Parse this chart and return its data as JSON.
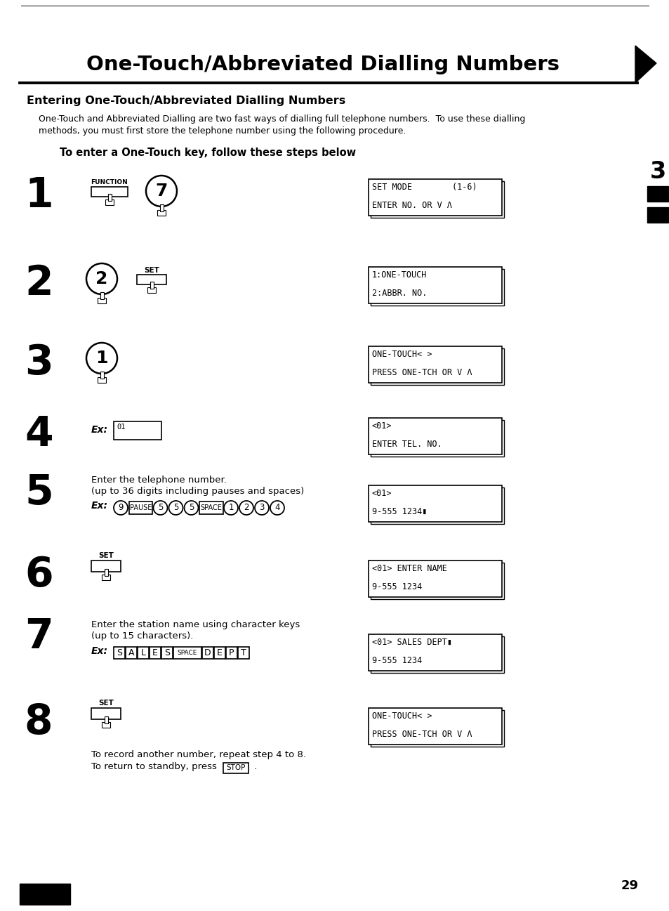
{
  "title": "One-Touch/Abbreviated Dialling Numbers",
  "section_title": "Entering One-Touch/Abbreviated Dialling Numbers",
  "intro_line1": "One-Touch and Abbreviated Dialling are two fast ways of dialling full telephone numbers.  To use these dialling",
  "intro_line2": "methods, you must first store the telephone number using the following procedure.",
  "instruction_title": "To enter a One-Touch key, follow these steps below",
  "page_number": "29",
  "bg_color": "#ffffff",
  "lcd_displays": [
    [
      "SET MODE        (1-6)",
      "ENTER NO. OR V Λ"
    ],
    [
      "1:ONE-TOUCH",
      "2:ABBR. NO."
    ],
    [
      "ONE-TOUCH< >",
      "PRESS ONE-TCH OR V Λ"
    ],
    [
      "<01>",
      "ENTER TEL. NO."
    ],
    [
      "<01>",
      "9-555 1234▮"
    ],
    [
      "<01> ENTER NAME",
      "9-555 1234"
    ],
    [
      "<01> SALES DEPT▮",
      "9-555 1234"
    ],
    [
      "ONE-TOUCH< >",
      "PRESS ONE-TCH OR V Λ"
    ]
  ],
  "step5_text1": "Enter the telephone number.",
  "step5_text2": "(up to 36 digits including pauses and spaces)",
  "step7_text1": "Enter the station name using character keys",
  "step7_text2": "(up to 15 characters).",
  "step8_footer1": "To record another number, repeat step 4 to 8.",
  "step8_footer2": "To return to standby, press",
  "stop_label": "STOP"
}
